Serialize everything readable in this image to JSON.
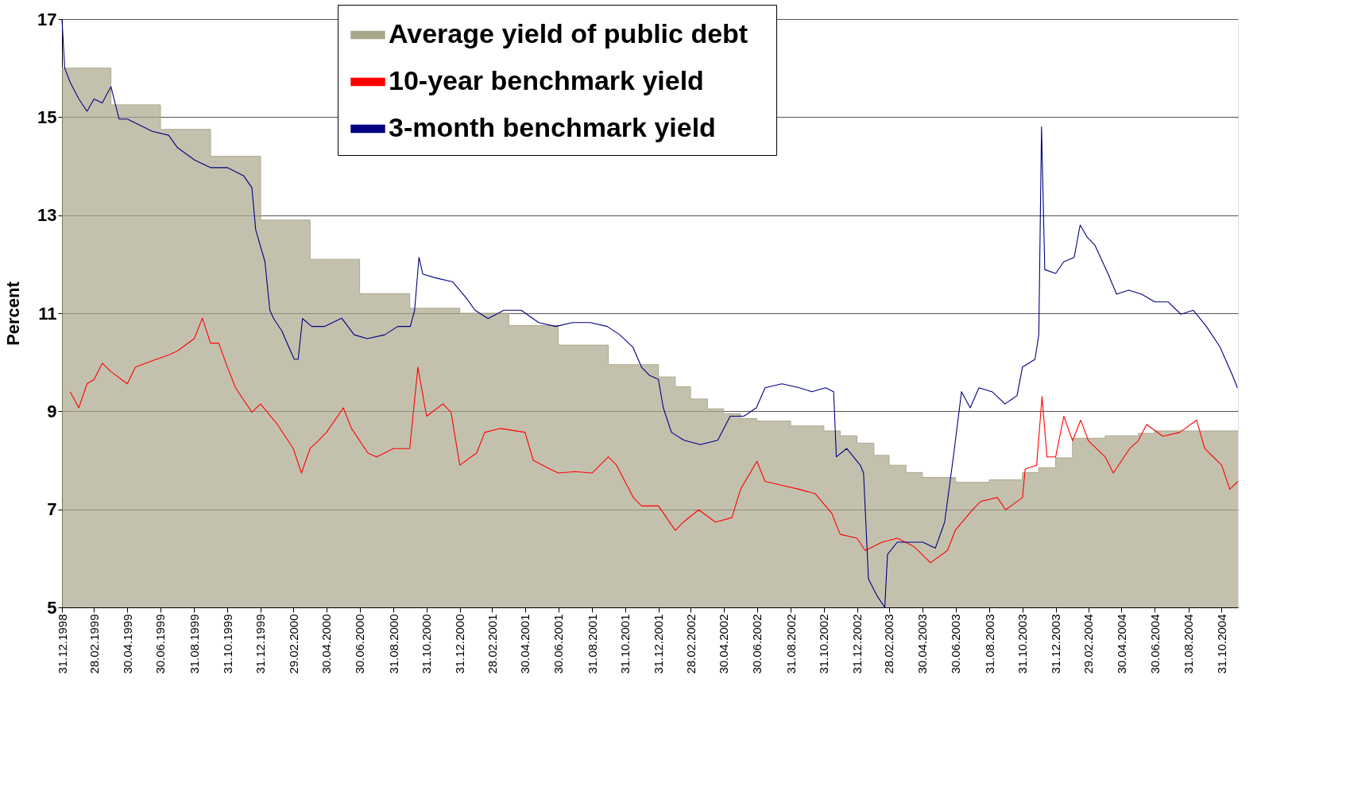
{
  "chart_data": {
    "type": "line",
    "ylabel": "Percent",
    "ylim": [
      5,
      17
    ],
    "yticks": [
      5,
      7,
      9,
      11,
      13,
      15,
      17
    ],
    "xlim": [
      "1998-12-31",
      "2004-11-30"
    ],
    "xticks": [
      {
        "value": "1998-12-31",
        "label": "31.12.1998"
      },
      {
        "value": "1999-02-28",
        "label": "28.02.1999"
      },
      {
        "value": "1999-04-30",
        "label": "30.04.1999"
      },
      {
        "value": "1999-06-30",
        "label": "30.06.1999"
      },
      {
        "value": "1999-08-31",
        "label": "31.08.1999"
      },
      {
        "value": "1999-10-31",
        "label": "31.10.1999"
      },
      {
        "value": "1999-12-31",
        "label": "31.12.1999"
      },
      {
        "value": "2000-02-29",
        "label": "29.02.2000"
      },
      {
        "value": "2000-04-30",
        "label": "30.04.2000"
      },
      {
        "value": "2000-06-30",
        "label": "30.06.2000"
      },
      {
        "value": "2000-08-31",
        "label": "31.08.2000"
      },
      {
        "value": "2000-10-31",
        "label": "31.10.2000"
      },
      {
        "value": "2000-12-31",
        "label": "31.12.2000"
      },
      {
        "value": "2001-02-28",
        "label": "28.02.2001"
      },
      {
        "value": "2001-04-30",
        "label": "30.04.2001"
      },
      {
        "value": "2001-06-30",
        "label": "30.06.2001"
      },
      {
        "value": "2001-08-31",
        "label": "31.08.2001"
      },
      {
        "value": "2001-10-31",
        "label": "31.10.2001"
      },
      {
        "value": "2001-12-31",
        "label": "31.12.2001"
      },
      {
        "value": "2002-02-28",
        "label": "28.02.2002"
      },
      {
        "value": "2002-04-30",
        "label": "30.04.2002"
      },
      {
        "value": "2002-06-30",
        "label": "30.06.2002"
      },
      {
        "value": "2002-08-31",
        "label": "31.08.2002"
      },
      {
        "value": "2002-10-31",
        "label": "31.10.2002"
      },
      {
        "value": "2002-12-31",
        "label": "31.12.2002"
      },
      {
        "value": "2003-02-28",
        "label": "28.02.2003"
      },
      {
        "value": "2003-04-30",
        "label": "30.04.2003"
      },
      {
        "value": "2003-06-30",
        "label": "30.06.2003"
      },
      {
        "value": "2003-08-31",
        "label": "31.08.2003"
      },
      {
        "value": "2003-10-31",
        "label": "31.10.2003"
      },
      {
        "value": "2003-12-31",
        "label": "31.12.2003"
      },
      {
        "value": "2004-02-29",
        "label": "29.02.2004"
      },
      {
        "value": "2004-04-30",
        "label": "30.04.2004"
      },
      {
        "value": "2004-06-30",
        "label": "30.06.2004"
      },
      {
        "value": "2004-08-31",
        "label": "31.08.2004"
      },
      {
        "value": "2004-10-31",
        "label": "31.10.2004"
      }
    ],
    "grid": "y",
    "legend": "top",
    "series": [
      {
        "name": "Average yield  of  public debt",
        "type": "area",
        "color": "#a9a78b",
        "x": [
          "1998-12-31",
          "1999-03-31",
          "1999-03-31",
          "1999-06-30",
          "1999-06-30",
          "1999-09-30",
          "1999-09-30",
          "1999-12-31",
          "1999-12-31",
          "2000-03-31",
          "2000-03-31",
          "2000-06-30",
          "2000-06-30",
          "2000-09-30",
          "2000-09-30",
          "2000-12-31",
          "2000-12-31",
          "2001-03-31",
          "2001-03-31",
          "2001-06-30",
          "2001-06-30",
          "2001-09-30",
          "2001-09-30",
          "2001-12-31",
          "2001-12-31",
          "2002-01-31",
          "2002-01-31",
          "2002-02-28",
          "2002-02-28",
          "2002-03-31",
          "2002-03-31",
          "2002-04-30",
          "2002-04-30",
          "2002-05-31",
          "2002-05-31",
          "2002-06-30",
          "2002-06-30",
          "2002-08-31",
          "2002-08-31",
          "2002-10-31",
          "2002-10-31",
          "2002-11-30",
          "2002-11-30",
          "2002-12-31",
          "2002-12-31",
          "2003-01-31",
          "2003-01-31",
          "2003-02-28",
          "2003-02-28",
          "2003-03-31",
          "2003-03-31",
          "2003-04-30",
          "2003-04-30",
          "2003-06-30",
          "2003-06-30",
          "2003-08-31",
          "2003-08-31",
          "2003-10-31",
          "2003-10-31",
          "2003-11-30",
          "2003-11-30",
          "2003-12-31",
          "2003-12-31",
          "2004-01-31",
          "2004-01-31",
          "2004-03-31",
          "2004-03-31",
          "2004-05-31",
          "2004-05-31",
          "2004-06-30",
          "2004-06-30",
          "2004-11-30"
        ],
        "values": [
          16.0,
          16.0,
          15.25,
          15.25,
          14.75,
          14.75,
          14.2,
          14.2,
          12.9,
          12.9,
          12.1,
          12.1,
          11.4,
          11.4,
          11.1,
          11.1,
          11.0,
          11.0,
          10.75,
          10.75,
          10.35,
          10.35,
          9.95,
          9.95,
          9.7,
          9.7,
          9.5,
          9.5,
          9.25,
          9.25,
          9.05,
          9.05,
          8.95,
          8.95,
          8.85,
          8.85,
          8.8,
          8.8,
          8.7,
          8.7,
          8.6,
          8.6,
          8.5,
          8.5,
          8.35,
          8.35,
          8.1,
          8.1,
          7.9,
          7.9,
          7.75,
          7.75,
          7.65,
          7.65,
          7.55,
          7.55,
          7.6,
          7.6,
          7.75,
          7.75,
          7.85,
          7.85,
          8.05,
          8.05,
          8.45,
          8.45,
          8.5,
          8.5,
          8.55,
          8.55,
          8.6,
          8.6
        ]
      },
      {
        "name": "10-year benchmark yield",
        "color": "#ff0000",
        "x": [
          "1999-01-15",
          "1999-01-31",
          "1999-02-15",
          "1999-02-28",
          "1999-03-15",
          "1999-03-31",
          "1999-04-30",
          "1999-05-15",
          "1999-06-15",
          "1999-07-15",
          "1999-07-31",
          "1999-08-31",
          "1999-09-15",
          "1999-09-30",
          "1999-10-15",
          "1999-10-31",
          "1999-11-15",
          "1999-12-15",
          "1999-12-31",
          "2000-01-31",
          "2000-02-29",
          "2000-03-15",
          "2000-03-31",
          "2000-04-15",
          "2000-04-30",
          "2000-05-31",
          "2000-06-15",
          "2000-07-15",
          "2000-07-31",
          "2000-08-31",
          "2000-09-30",
          "2000-10-15",
          "2000-10-31",
          "2000-11-30",
          "2000-12-15",
          "2000-12-31",
          "2001-01-31",
          "2001-02-15",
          "2001-03-15",
          "2001-04-30",
          "2001-05-15",
          "2001-06-15",
          "2001-06-30",
          "2001-07-31",
          "2001-08-31",
          "2001-09-30",
          "2001-10-15",
          "2001-11-15",
          "2001-11-30",
          "2001-12-31",
          "2002-01-31",
          "2002-02-15",
          "2002-03-15",
          "2002-04-15",
          "2002-05-15",
          "2002-05-31",
          "2002-06-30",
          "2002-07-15",
          "2002-08-15",
          "2002-09-15",
          "2002-10-15",
          "2002-11-15",
          "2002-11-30",
          "2002-12-31",
          "2003-01-15",
          "2003-02-15",
          "2003-03-15",
          "2003-04-15",
          "2003-05-15",
          "2003-06-15",
          "2003-06-30",
          "2003-07-31",
          "2003-08-15",
          "2003-09-15",
          "2003-09-30",
          "2003-10-31",
          "2003-11-05",
          "2003-11-26",
          "2003-12-06",
          "2003-12-15",
          "2003-12-31",
          "2004-01-15",
          "2004-01-31",
          "2004-02-15",
          "2004-02-29",
          "2004-03-31",
          "2004-04-15",
          "2004-05-15",
          "2004-05-31",
          "2004-06-15",
          "2004-07-15",
          "2004-08-15",
          "2004-09-15",
          "2004-09-30",
          "2004-10-31",
          "2004-11-15",
          "2004-11-30"
        ],
        "values": [
          9.4,
          9.07,
          9.56,
          9.65,
          9.98,
          9.81,
          9.56,
          9.9,
          10.03,
          10.15,
          10.23,
          10.48,
          10.9,
          10.39,
          10.39,
          9.9,
          9.48,
          8.98,
          9.15,
          8.73,
          8.24,
          7.74,
          8.24,
          8.4,
          8.57,
          9.07,
          8.65,
          8.15,
          8.07,
          8.24,
          8.24,
          9.9,
          8.9,
          9.15,
          8.98,
          7.9,
          8.15,
          8.57,
          8.65,
          8.57,
          8.0,
          7.82,
          7.74,
          7.77,
          7.74,
          8.07,
          7.9,
          7.24,
          7.07,
          7.07,
          6.57,
          6.74,
          6.99,
          6.74,
          6.83,
          7.41,
          7.98,
          7.57,
          7.49,
          7.41,
          7.32,
          6.91,
          6.49,
          6.41,
          6.16,
          6.33,
          6.41,
          6.24,
          5.91,
          6.16,
          6.58,
          6.99,
          7.16,
          7.24,
          6.99,
          7.24,
          7.82,
          7.9,
          9.3,
          8.07,
          8.07,
          8.9,
          8.4,
          8.82,
          8.4,
          8.07,
          7.74,
          8.24,
          8.4,
          8.73,
          8.49,
          8.57,
          8.82,
          8.24,
          7.9,
          7.41,
          7.57
        ]
      },
      {
        "name": "3-month benchmark yield",
        "color": "#000080",
        "x": [
          "1998-12-31",
          "1999-01-05",
          "1999-01-15",
          "1999-01-31",
          "1999-02-15",
          "1999-02-28",
          "1999-03-15",
          "1999-03-31",
          "1999-04-15",
          "1999-04-30",
          "1999-05-15",
          "1999-06-15",
          "1999-07-15",
          "1999-07-31",
          "1999-08-31",
          "1999-09-30",
          "1999-10-31",
          "1999-11-30",
          "1999-12-15",
          "1999-12-22",
          "2000-01-08",
          "2000-01-17",
          "2000-01-24",
          "2000-02-08",
          "2000-02-24",
          "2000-03-02",
          "2000-03-09",
          "2000-03-17",
          "2000-04-03",
          "2000-04-26",
          "2000-05-28",
          "2000-06-20",
          "2000-07-14",
          "2000-08-15",
          "2000-09-08",
          "2000-10-01",
          "2000-10-09",
          "2000-10-17",
          "2000-10-24",
          "2000-11-17",
          "2000-12-18",
          "2001-01-12",
          "2001-01-28",
          "2001-02-21",
          "2001-03-22",
          "2001-04-23",
          "2001-05-25",
          "2001-06-25",
          "2001-07-26",
          "2001-08-28",
          "2001-09-28",
          "2001-10-21",
          "2001-11-14",
          "2001-11-30",
          "2001-12-15",
          "2001-12-31",
          "2002-01-09",
          "2002-01-24",
          "2002-02-16",
          "2002-03-18",
          "2002-04-19",
          "2002-05-12",
          "2002-06-06",
          "2002-06-29",
          "2002-07-15",
          "2002-08-15",
          "2002-09-16",
          "2002-10-09",
          "2002-11-03",
          "2002-11-18",
          "2002-11-23",
          "2002-12-12",
          "2003-01-06",
          "2003-01-12",
          "2003-01-21",
          "2003-02-05",
          "2003-02-20",
          "2003-02-25",
          "2003-03-15",
          "2003-05-01",
          "2003-05-24",
          "2003-06-10",
          "2003-06-26",
          "2003-07-11",
          "2003-07-27",
          "2003-08-12",
          "2003-09-05",
          "2003-09-29",
          "2003-10-21",
          "2003-10-31",
          "2003-11-23",
          "2003-11-30",
          "2003-12-05",
          "2003-12-11",
          "2003-12-31",
          "2004-01-15",
          "2004-02-03",
          "2004-02-14",
          "2004-02-27",
          "2004-03-12",
          "2004-04-05",
          "2004-04-21",
          "2004-05-13",
          "2004-06-06",
          "2004-06-30",
          "2004-07-25",
          "2004-08-17",
          "2004-09-09",
          "2004-10-03",
          "2004-10-28",
          "2004-11-20",
          "2004-11-29"
        ],
        "values": [
          17.0,
          16.0,
          15.71,
          15.37,
          15.12,
          15.37,
          15.29,
          15.62,
          14.96,
          14.96,
          14.88,
          14.71,
          14.63,
          14.38,
          14.13,
          13.97,
          13.97,
          13.8,
          13.56,
          12.7,
          12.05,
          11.06,
          10.89,
          10.64,
          10.23,
          10.06,
          10.06,
          10.89,
          10.73,
          10.73,
          10.9,
          10.56,
          10.48,
          10.56,
          10.73,
          10.73,
          11.06,
          12.14,
          11.8,
          11.72,
          11.64,
          11.31,
          11.06,
          10.89,
          11.06,
          11.06,
          10.81,
          10.73,
          10.81,
          10.81,
          10.73,
          10.56,
          10.31,
          9.9,
          9.73,
          9.65,
          9.07,
          8.57,
          8.41,
          8.32,
          8.41,
          8.9,
          8.9,
          9.07,
          9.48,
          9.56,
          9.48,
          9.4,
          9.48,
          9.4,
          8.07,
          8.24,
          7.9,
          7.74,
          5.58,
          5.25,
          5.0,
          6.08,
          6.33,
          6.33,
          6.21,
          6.74,
          8.07,
          9.4,
          9.07,
          9.48,
          9.4,
          9.15,
          9.32,
          9.9,
          10.06,
          10.56,
          14.8,
          11.89,
          11.81,
          12.05,
          12.14,
          12.8,
          12.55,
          12.39,
          11.81,
          11.39,
          11.47,
          11.39,
          11.23,
          11.23,
          10.98,
          11.06,
          10.73,
          10.31,
          9.73,
          9.48
        ]
      }
    ]
  }
}
